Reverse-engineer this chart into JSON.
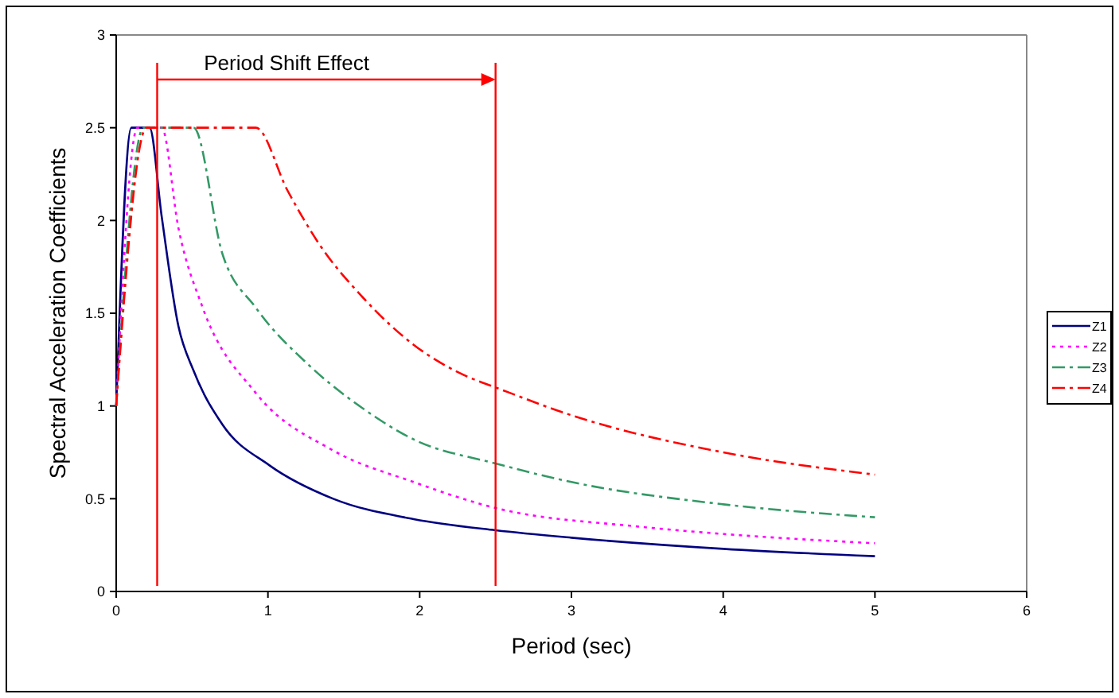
{
  "chart_data": {
    "type": "line",
    "xlabel": "Period (sec)",
    "ylabel": "Spectral Acceleration Coefficients",
    "xlim": [
      0,
      6
    ],
    "xticks": [
      0,
      1,
      2,
      3,
      4,
      5,
      6
    ],
    "ylim": [
      0,
      3
    ],
    "yticks": [
      0,
      0.5,
      1,
      1.5,
      2,
      2.5,
      3
    ],
    "grid": false,
    "legend": "right",
    "series": [
      {
        "name": "Z1",
        "color": "#000080",
        "line_style": "solid",
        "x": [
          0,
          0.1,
          0.22,
          0.3,
          0.41,
          0.51,
          0.7,
          1.01,
          1.43,
          1.96,
          2.5,
          3,
          4,
          5
        ],
        "values": [
          1,
          2.5,
          2.5,
          2.02,
          1.43,
          1.19,
          0.9,
          0.68,
          0.5,
          0.39,
          0.33,
          0.29,
          0.23,
          0.19
        ]
      },
      {
        "name": "Z2",
        "color": "#ff00ff",
        "line_style": "dotted",
        "x": [
          0,
          0.14,
          0.3,
          0.41,
          0.57,
          0.92,
          1.43,
          1.96,
          2.5,
          3.44,
          4,
          5
        ],
        "values": [
          1,
          2.5,
          2.5,
          1.96,
          1.53,
          1.07,
          0.76,
          0.59,
          0.45,
          0.35,
          0.31,
          0.26
        ]
      },
      {
        "name": "Z3",
        "color": "#339966",
        "line_style": "dashed",
        "x": [
          0,
          0.18,
          0.51,
          0.7,
          0.92,
          1.27,
          1.62,
          1.96,
          2.5,
          3,
          4,
          5
        ],
        "values": [
          1,
          2.5,
          2.5,
          1.82,
          1.53,
          1.22,
          0.99,
          0.82,
          0.69,
          0.59,
          0.47,
          0.4
        ]
      },
      {
        "name": "Z4",
        "color": "#ff0000",
        "line_style": "dashed",
        "x": [
          0,
          0.2,
          0.92,
          1.13,
          1.34,
          1.62,
          1.96,
          2.31,
          2.5,
          3,
          4,
          5
        ],
        "values": [
          1,
          2.5,
          2.5,
          2.16,
          1.87,
          1.59,
          1.33,
          1.16,
          1.1,
          0.95,
          0.75,
          0.63
        ]
      }
    ],
    "ref_lines": [
      {
        "axis": "x",
        "value": 0.27,
        "color": "#ff0000"
      },
      {
        "axis": "x",
        "value": 2.5,
        "color": "#ff0000"
      }
    ],
    "annotations": [
      "Period Shift Effect"
    ]
  }
}
